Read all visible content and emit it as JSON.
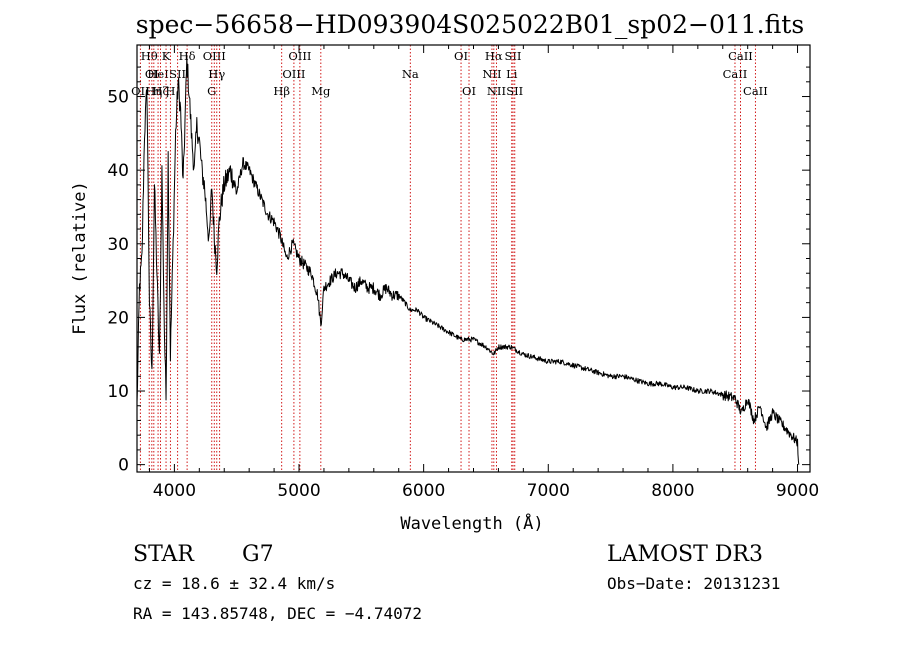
{
  "chart_data": {
    "type": "line",
    "title": "spec−56658−HD093904S025022B01_sp02−011.fits",
    "xlabel": "Wavelength (Å)",
    "ylabel": "Flux (relative)",
    "xlim": [
      3700,
      9100
    ],
    "ylim": [
      -1,
      57
    ],
    "x_ticks": [
      4000,
      5000,
      6000,
      7000,
      8000,
      9000
    ],
    "y_ticks": [
      0,
      10,
      20,
      30,
      40,
      50
    ],
    "series": [
      {
        "name": "spectrum",
        "x": [
          3700,
          3720,
          3740,
          3760,
          3780,
          3800,
          3820,
          3840,
          3860,
          3880,
          3900,
          3920,
          3933,
          3950,
          3968,
          3990,
          4010,
          4030,
          4050,
          4070,
          4100,
          4120,
          4140,
          4160,
          4180,
          4200,
          4220,
          4240,
          4260,
          4280,
          4300,
          4320,
          4340,
          4360,
          4380,
          4400,
          4450,
          4500,
          4550,
          4600,
          4650,
          4700,
          4750,
          4800,
          4850,
          4900,
          4950,
          5000,
          5050,
          5100,
          5150,
          5175,
          5200,
          5250,
          5300,
          5350,
          5400,
          5450,
          5500,
          5550,
          5600,
          5650,
          5700,
          5750,
          5800,
          5850,
          5890,
          5950,
          6000,
          6100,
          6200,
          6300,
          6400,
          6500,
          6563,
          6600,
          6700,
          6800,
          6900,
          7000,
          7100,
          7200,
          7300,
          7400,
          7500,
          7600,
          7700,
          7800,
          7900,
          8000,
          8100,
          8200,
          8300,
          8400,
          8500,
          8550,
          8600,
          8650,
          8700,
          8750,
          8800,
          8850,
          8900,
          8950,
          9000,
          9010
        ],
        "y": [
          8,
          24,
          28,
          45,
          51,
          22,
          12,
          38,
          26,
          14,
          40,
          18,
          9,
          42,
          15,
          30,
          45,
          52,
          48,
          38,
          55,
          50,
          44,
          40,
          46,
          44,
          40,
          38,
          34,
          30,
          38,
          31,
          27,
          33,
          36,
          38,
          40,
          37,
          41,
          40,
          38,
          36,
          34,
          33,
          31,
          28,
          30,
          28,
          27,
          26,
          23,
          19,
          24,
          25,
          26,
          26,
          25,
          24,
          25,
          24,
          24,
          23,
          24,
          23,
          23,
          22,
          21,
          21,
          20,
          19,
          18,
          17,
          17,
          16,
          15,
          16,
          16,
          15,
          14.5,
          14,
          14,
          13.5,
          13,
          12.5,
          12,
          12,
          11.5,
          11,
          11,
          10.5,
          10.5,
          10,
          10,
          9.5,
          9,
          7,
          9,
          6,
          8,
          5,
          7,
          6,
          5,
          4,
          3,
          0
        ]
      }
    ],
    "line_markers": [
      {
        "wl": 3727,
        "label": "OII",
        "row": 3
      },
      {
        "wl": 3798,
        "label": "Hθ",
        "row": 1
      },
      {
        "wl": 3819,
        "label": "OI",
        "row": 2
      },
      {
        "wl": 3835,
        "label": "Hη",
        "row": 3
      },
      {
        "wl": 3869,
        "label": "HeI",
        "row": 2
      },
      {
        "wl": 3889,
        "label": "Hζ",
        "row": 3
      },
      {
        "wl": 3933,
        "label": "K",
        "row": 1
      },
      {
        "wl": 3968,
        "label": "H",
        "row": 3
      },
      {
        "wl": 4026,
        "label": "SII",
        "row": 2
      },
      {
        "wl": 4102,
        "label": "Hδ",
        "row": 1
      },
      {
        "wl": 4300,
        "label": "G",
        "row": 3
      },
      {
        "wl": 4320,
        "label": "OIII",
        "row": 1
      },
      {
        "wl": 4340,
        "label": "Hγ",
        "row": 2
      },
      {
        "wl": 4363,
        "label": "",
        "row": 0
      },
      {
        "wl": 4861,
        "label": "Hβ",
        "row": 3
      },
      {
        "wl": 4959,
        "label": "OIII",
        "row": 2
      },
      {
        "wl": 5007,
        "label": "OIII",
        "row": 1
      },
      {
        "wl": 5175,
        "label": "Mg",
        "row": 3
      },
      {
        "wl": 5893,
        "label": "Na",
        "row": 2
      },
      {
        "wl": 6300,
        "label": "OI",
        "row": 1
      },
      {
        "wl": 6364,
        "label": "OI",
        "row": 3
      },
      {
        "wl": 6548,
        "label": "NII",
        "row": 2
      },
      {
        "wl": 6563,
        "label": "Hα",
        "row": 1
      },
      {
        "wl": 6584,
        "label": "NII",
        "row": 3
      },
      {
        "wl": 6707,
        "label": "Li",
        "row": 2
      },
      {
        "wl": 6717,
        "label": "SII",
        "row": 1
      },
      {
        "wl": 6731,
        "label": "SII",
        "row": 3
      },
      {
        "wl": 8498,
        "label": "CaII",
        "row": 2
      },
      {
        "wl": 8542,
        "label": "CaII",
        "row": 1
      },
      {
        "wl": 8662,
        "label": "CaII",
        "row": 3
      }
    ]
  },
  "info": {
    "class_label": "STAR",
    "subclass": "G7",
    "cz_text": "cz = 18.6 ± 32.4 km/s",
    "radec_text": "RA = 143.85748, DEC =  −4.74072",
    "survey": "LAMOST DR3",
    "obs_date": "Obs−Date: 20131231"
  },
  "colors": {
    "marker": "#cc0000",
    "spectrum": "#000000",
    "frame": "#000000"
  }
}
